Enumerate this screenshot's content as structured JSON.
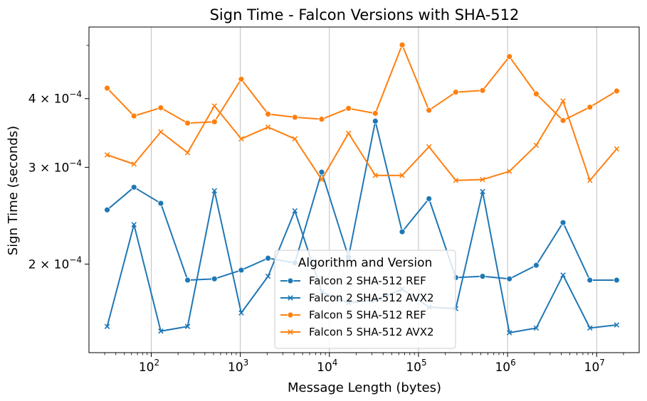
{
  "chart_data": {
    "type": "line",
    "title": "Sign Time - Falcon Versions with SHA-512",
    "xlabel": "Message Length (bytes)",
    "ylabel": "Sign Time (seconds)",
    "xscale": "log",
    "yscale": "log",
    "xlim": [
      20,
      30000000
    ],
    "ylim": [
      0.000138,
      0.00054
    ],
    "grid": "x-major vertical lines",
    "x": [
      32,
      64,
      128,
      256,
      512,
      1024,
      2048,
      4096,
      8192,
      16384,
      32768,
      65536,
      131072,
      262144,
      524288,
      1048576,
      2097152,
      4194304,
      8388608,
      16777216
    ],
    "x_ticks": [
      {
        "value": 100,
        "base": "10",
        "exp": "2"
      },
      {
        "value": 1000,
        "base": "10",
        "exp": "3"
      },
      {
        "value": 10000,
        "base": "10",
        "exp": "4"
      },
      {
        "value": 100000,
        "base": "10",
        "exp": "5"
      },
      {
        "value": 1000000,
        "base": "10",
        "exp": "6"
      },
      {
        "value": 10000000,
        "base": "10",
        "exp": "7"
      }
    ],
    "y_ticks": [
      {
        "value": 0.0002,
        "mant": "2 × 10",
        "exp": "−4"
      },
      {
        "value": 0.0003,
        "mant": "3 × 10",
        "exp": "−4"
      },
      {
        "value": 0.0004,
        "mant": "4 × 10",
        "exp": "−4"
      }
    ],
    "series": [
      {
        "name": "Falcon 2 SHA-512 REF",
        "color": "#1f77b4",
        "marker": "circle",
        "values": [
          0.000251,
          0.000276,
          0.000258,
          0.000187,
          0.000188,
          0.000195,
          0.000205,
          0.000201,
          0.000294,
          0.000206,
          0.000364,
          0.000229,
          0.000263,
          0.000189,
          0.00019,
          0.000188,
          0.000199,
          0.000238,
          0.000187,
          0.000187
        ]
      },
      {
        "name": "Falcon 2 SHA-512 AVX2",
        "color": "#1f77b4",
        "marker": "x",
        "values": [
          0.000154,
          0.000236,
          0.000151,
          0.000154,
          0.000272,
          0.000163,
          0.00019,
          0.00025,
          0.000178,
          0.00017,
          0.000172,
          0.00018,
          0.000167,
          0.000166,
          0.000271,
          0.00015,
          0.000153,
          0.000191,
          0.000153,
          0.000155
        ]
      },
      {
        "name": "Falcon 5 SHA-512 REF",
        "color": "#ff7f0e",
        "marker": "circle",
        "values": [
          0.000418,
          0.000372,
          0.000385,
          0.000361,
          0.000363,
          0.000434,
          0.000375,
          0.00037,
          0.000367,
          0.000384,
          0.000376,
          0.000501,
          0.000381,
          0.000411,
          0.000414,
          0.000477,
          0.000408,
          0.000365,
          0.000386,
          0.000413
        ]
      },
      {
        "name": "Falcon 5 SHA-512 AVX2",
        "color": "#ff7f0e",
        "marker": "x",
        "values": [
          0.000316,
          0.000304,
          0.000348,
          0.000319,
          0.000388,
          0.000338,
          0.000355,
          0.000338,
          0.000285,
          0.000346,
          0.00029,
          0.00029,
          0.000327,
          0.000284,
          0.000285,
          0.000295,
          0.000329,
          0.000396,
          0.000284,
          0.000324
        ]
      }
    ],
    "legend": {
      "title": "Algorithm and Version",
      "placement": "lower-center"
    }
  }
}
